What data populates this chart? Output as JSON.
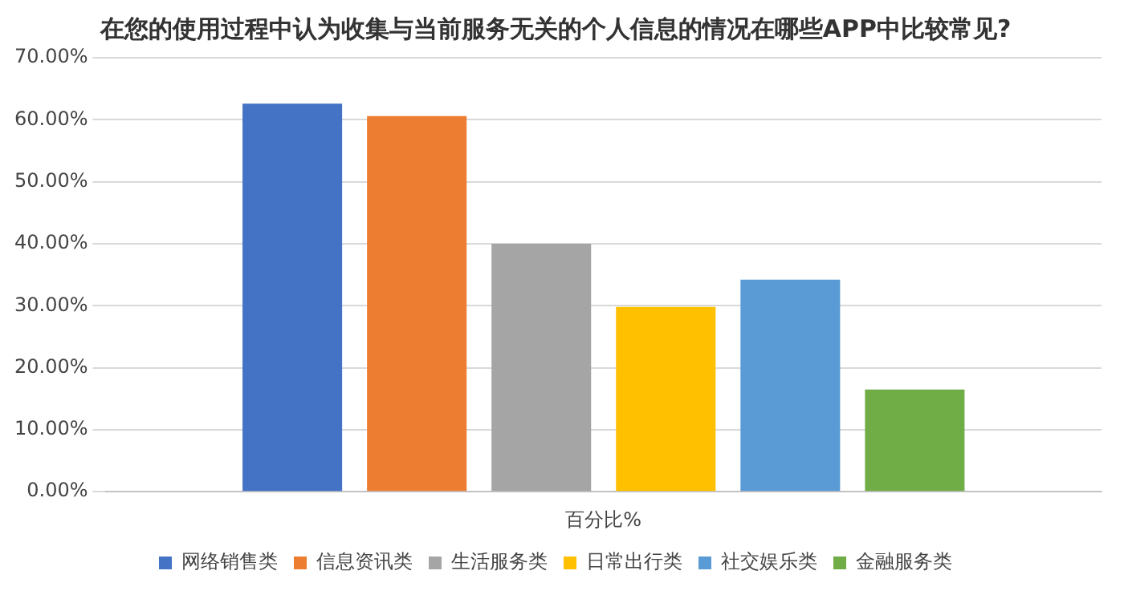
{
  "chart_data": {
    "type": "bar",
    "title": "在您的使用过程中认为收集与当前服务无关的个人信息的情况在哪些APP中比较常见?",
    "categories": [
      "百分比%"
    ],
    "series": [
      {
        "name": "网络销售类",
        "color": "#4472c4",
        "values": [
          62.6
        ]
      },
      {
        "name": "信息资讯类",
        "color": "#ed7d31",
        "values": [
          60.6
        ]
      },
      {
        "name": "生活服务类",
        "color": "#a5a5a5",
        "values": [
          40.0
        ]
      },
      {
        "name": "日常出行类",
        "color": "#ffc000",
        "values": [
          29.8
        ]
      },
      {
        "name": "社交娱乐类",
        "color": "#5b9bd5",
        "values": [
          34.2
        ]
      },
      {
        "name": "金融服务类",
        "color": "#70ad47",
        "values": [
          16.5
        ]
      }
    ],
    "ylim": [
      0,
      70
    ],
    "yticks": [
      {
        "value": 0,
        "label": "0.00%"
      },
      {
        "value": 10,
        "label": "10.00%"
      },
      {
        "value": 20,
        "label": "20.00%"
      },
      {
        "value": 30,
        "label": "30.00%"
      },
      {
        "value": 40,
        "label": "40.00%"
      },
      {
        "value": 50,
        "label": "50.00%"
      },
      {
        "value": 60,
        "label": "60.00%"
      },
      {
        "value": 70,
        "label": "70.00%"
      }
    ],
    "grid": "y",
    "legend": "bottom"
  }
}
